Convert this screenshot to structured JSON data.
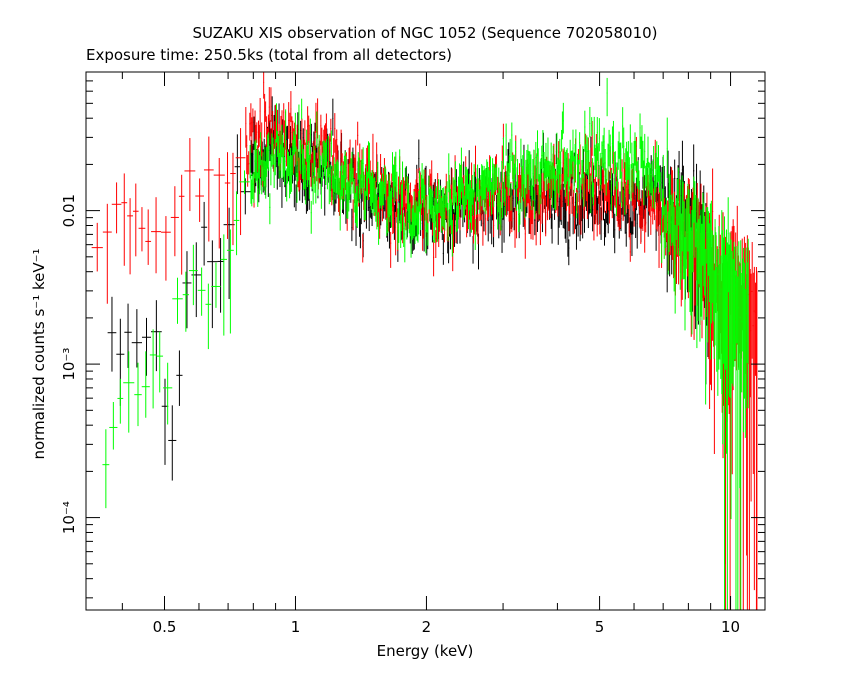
{
  "chart_data": {
    "type": "scatter",
    "title": "SUZAKU XIS observation of NGC 1052 (Sequence 702058010)",
    "subtitle": "Exposure time: 250.5ks (total from all detectors)",
    "xlabel": "Energy (keV)",
    "ylabel": "normalized counts s⁻¹ keV⁻¹",
    "xscale": "log",
    "yscale": "log",
    "xlim": [
      0.33,
      12.0
    ],
    "ylim": [
      2.5e-05,
      0.08
    ],
    "grid": false,
    "legend": "none",
    "x_ticks": [
      {
        "value": 0.5,
        "label": "0.5"
      },
      {
        "value": 1,
        "label": "1"
      },
      {
        "value": 2,
        "label": "2"
      },
      {
        "value": 5,
        "label": "5"
      },
      {
        "value": 10,
        "label": "10"
      }
    ],
    "y_ticks": [
      {
        "value": 0.0001,
        "label": "10⁻⁴"
      },
      {
        "value": 0.001,
        "label": "10⁻³"
      },
      {
        "value": 0.01,
        "label": "0.01"
      }
    ],
    "series": [
      {
        "color": "#000000",
        "points": [
          [
            0.37,
            0.0013
          ],
          [
            0.47,
            0.0013
          ],
          [
            0.51,
            0.0004
          ],
          [
            0.55,
            0.0045
          ],
          [
            0.6,
            0.0045
          ],
          [
            0.65,
            0.0055
          ],
          [
            0.7,
            0.0075
          ],
          [
            0.8,
            0.022
          ],
          [
            0.9,
            0.025
          ],
          [
            1.0,
            0.022
          ],
          [
            1.2,
            0.018
          ],
          [
            1.5,
            0.013
          ],
          [
            1.8,
            0.0105
          ],
          [
            2.2,
            0.0095
          ],
          [
            2.6,
            0.011
          ],
          [
            3.0,
            0.0125
          ],
          [
            3.5,
            0.013
          ],
          [
            4.0,
            0.0125
          ],
          [
            4.5,
            0.0125
          ],
          [
            5.0,
            0.0125
          ],
          [
            5.5,
            0.012
          ],
          [
            6.0,
            0.012
          ],
          [
            6.3,
            0.013
          ],
          [
            6.7,
            0.014
          ],
          [
            7.0,
            0.012
          ],
          [
            7.5,
            0.0105
          ],
          [
            8.0,
            0.01
          ],
          [
            8.5,
            0.008
          ],
          [
            9.0,
            0.006
          ]
        ]
      },
      {
        "color": "#ff0000",
        "points": [
          [
            0.34,
            0.006
          ],
          [
            0.37,
            0.008
          ],
          [
            0.4,
            0.009
          ],
          [
            0.45,
            0.007
          ],
          [
            0.48,
            0.006
          ],
          [
            0.52,
            0.01
          ],
          [
            0.56,
            0.013
          ],
          [
            0.6,
            0.016
          ],
          [
            0.65,
            0.017
          ],
          [
            0.7,
            0.02
          ],
          [
            0.75,
            0.026
          ],
          [
            0.8,
            0.03
          ],
          [
            0.85,
            0.035
          ],
          [
            0.9,
            0.035
          ],
          [
            0.95,
            0.032
          ],
          [
            1.0,
            0.03
          ],
          [
            1.1,
            0.025
          ],
          [
            1.2,
            0.021
          ],
          [
            1.4,
            0.016
          ],
          [
            1.6,
            0.013
          ],
          [
            1.8,
            0.011
          ],
          [
            2.0,
            0.0105
          ],
          [
            2.3,
            0.0105
          ],
          [
            2.6,
            0.012
          ],
          [
            3.0,
            0.0135
          ],
          [
            3.5,
            0.0145
          ],
          [
            4.0,
            0.015
          ],
          [
            4.5,
            0.0155
          ],
          [
            5.0,
            0.0155
          ],
          [
            5.5,
            0.015
          ],
          [
            6.0,
            0.0135
          ],
          [
            6.5,
            0.0115
          ],
          [
            7.0,
            0.0095
          ],
          [
            7.5,
            0.008
          ],
          [
            8.0,
            0.007
          ],
          [
            8.5,
            0.006
          ],
          [
            9.0,
            0.005
          ],
          [
            9.5,
            0.004
          ],
          [
            10.0,
            0.0035
          ],
          [
            10.5,
            0.003
          ],
          [
            11.0,
            0.0025
          ],
          [
            11.5,
            0.002
          ]
        ]
      },
      {
        "color": "#00ff00",
        "points": [
          [
            0.36,
            0.0003
          ],
          [
            0.45,
            0.0008
          ],
          [
            0.5,
            0.0018
          ],
          [
            0.55,
            0.0025
          ],
          [
            0.6,
            0.003
          ],
          [
            0.65,
            0.004
          ],
          [
            0.7,
            0.005
          ],
          [
            0.8,
            0.021
          ],
          [
            0.9,
            0.023
          ],
          [
            1.0,
            0.022
          ],
          [
            1.2,
            0.018
          ],
          [
            1.5,
            0.013
          ],
          [
            1.8,
            0.011
          ],
          [
            2.2,
            0.011
          ],
          [
            2.6,
            0.013
          ],
          [
            3.0,
            0.016
          ],
          [
            3.5,
            0.0185
          ],
          [
            4.0,
            0.02
          ],
          [
            4.5,
            0.0215
          ],
          [
            5.0,
            0.0225
          ],
          [
            5.5,
            0.022
          ],
          [
            6.0,
            0.021
          ],
          [
            6.3,
            0.019
          ],
          [
            6.7,
            0.017
          ],
          [
            7.0,
            0.0135
          ],
          [
            7.5,
            0.01
          ],
          [
            8.0,
            0.0075
          ],
          [
            8.5,
            0.006
          ],
          [
            9.0,
            0.0048
          ],
          [
            9.5,
            0.004
          ],
          [
            10.0,
            0.0032
          ],
          [
            11.0,
            0.0025
          ]
        ]
      }
    ]
  }
}
